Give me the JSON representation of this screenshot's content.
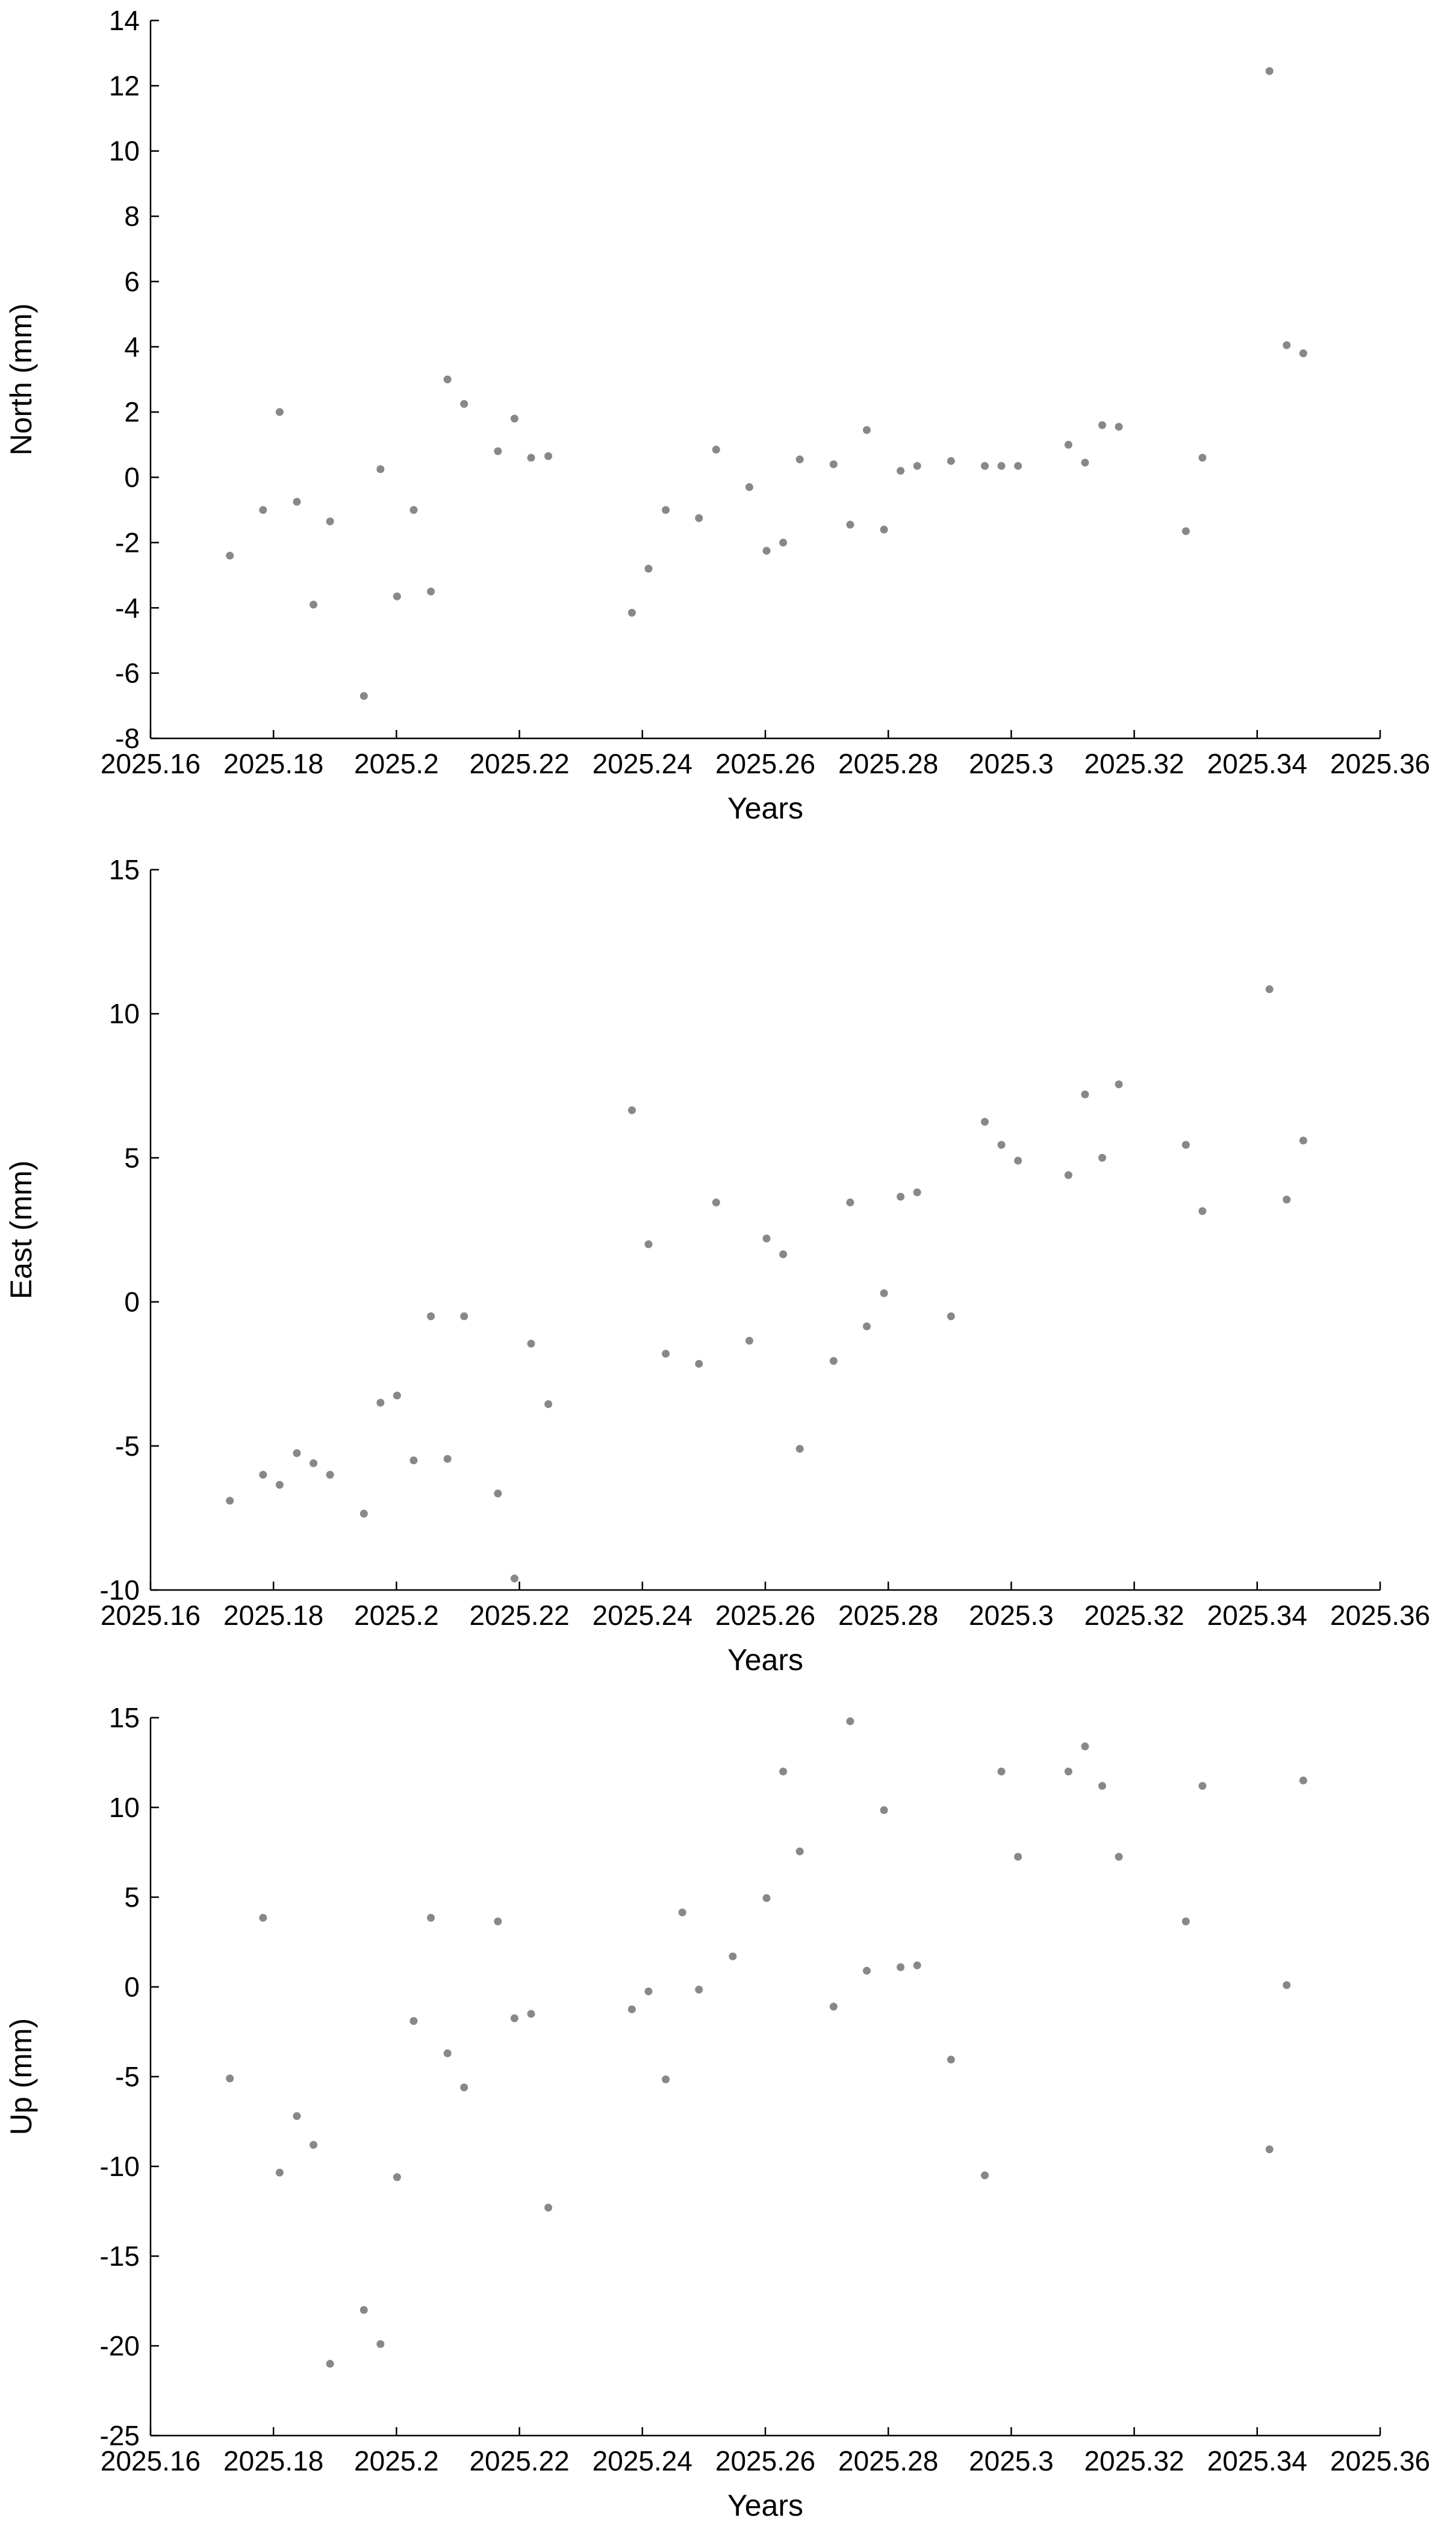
{
  "chart_data": [
    {
      "type": "scatter",
      "xlabel": "Years",
      "ylabel": "North (mm)",
      "xlim": [
        2025.16,
        2025.36
      ],
      "ylim": [
        -8,
        14
      ],
      "xticks": [
        "2025.16",
        "2025.18",
        "2025.2",
        "2025.22",
        "2025.24",
        "2025.26",
        "2025.28",
        "2025.3",
        "2025.32",
        "2025.34",
        "2025.36"
      ],
      "yticks": [
        "-8",
        "-6",
        "-4",
        "-2",
        "0",
        "2",
        "4",
        "6",
        "8",
        "10",
        "12",
        "14"
      ],
      "grid": false,
      "point_color": "#888888",
      "x": [
        2025.1729,
        2025.1783,
        2025.181,
        2025.1838,
        2025.1865,
        2025.1892,
        2025.1947,
        2025.1974,
        2025.2001,
        2025.2028,
        2025.2056,
        2025.2083,
        2025.211,
        2025.2165,
        2025.2192,
        2025.2219,
        2025.2247,
        2025.2383,
        2025.241,
        2025.2438,
        2025.2492,
        2025.252,
        2025.2574,
        2025.2602,
        2025.2629,
        2025.2656,
        2025.2711,
        2025.2738,
        2025.2765,
        2025.2793,
        2025.282,
        2025.2847,
        2025.2902,
        2025.2957,
        2025.2984,
        2025.3011,
        2025.3093,
        2025.312,
        2025.3148,
        2025.3175,
        2025.3284,
        2025.3311,
        2025.342,
        2025.3448,
        2025.3475
      ],
      "y": [
        -2.4,
        -1.0,
        2.0,
        -0.75,
        -3.9,
        -1.35,
        -6.7,
        0.25,
        -3.65,
        -1.0,
        -3.5,
        3.0,
        2.25,
        0.8,
        1.8,
        0.6,
        0.65,
        -4.15,
        -2.8,
        -1.0,
        -1.25,
        0.85,
        -0.3,
        -2.25,
        -2.0,
        0.55,
        0.4,
        -1.45,
        1.45,
        -1.6,
        0.2,
        0.35,
        0.5,
        0.35,
        0.35,
        0.35,
        1.0,
        0.45,
        1.6,
        1.55,
        -1.65,
        0.6,
        12.45,
        4.05,
        3.8
      ]
    },
    {
      "type": "scatter",
      "xlabel": "Years",
      "ylabel": "East (mm)",
      "xlim": [
        2025.16,
        2025.36
      ],
      "ylim": [
        -10,
        15
      ],
      "xticks": [
        "2025.16",
        "2025.18",
        "2025.2",
        "2025.22",
        "2025.24",
        "2025.26",
        "2025.28",
        "2025.3",
        "2025.32",
        "2025.34",
        "2025.36"
      ],
      "yticks": [
        "-10",
        "-5",
        "0",
        "5",
        "10",
        "15"
      ],
      "grid": false,
      "point_color": "#888888",
      "x": [
        2025.1729,
        2025.1783,
        2025.181,
        2025.1838,
        2025.1865,
        2025.1892,
        2025.1947,
        2025.1974,
        2025.2001,
        2025.2028,
        2025.2056,
        2025.2083,
        2025.211,
        2025.2165,
        2025.2192,
        2025.2219,
        2025.2247,
        2025.2383,
        2025.241,
        2025.2438,
        2025.2492,
        2025.252,
        2025.2574,
        2025.2602,
        2025.2629,
        2025.2656,
        2025.2711,
        2025.2738,
        2025.2765,
        2025.2793,
        2025.282,
        2025.2847,
        2025.2902,
        2025.2957,
        2025.2984,
        2025.3011,
        2025.3093,
        2025.312,
        2025.3148,
        2025.3175,
        2025.3284,
        2025.3311,
        2025.342,
        2025.3448,
        2025.3475
      ],
      "y": [
        -6.9,
        -6.0,
        -6.35,
        -5.25,
        -5.6,
        -6.0,
        -7.35,
        -3.5,
        -3.25,
        -5.5,
        -0.5,
        -5.45,
        -0.5,
        -6.65,
        -9.6,
        -1.45,
        -3.55,
        6.65,
        2.0,
        -1.8,
        -2.15,
        3.45,
        -1.35,
        2.2,
        1.65,
        -5.1,
        -2.05,
        3.45,
        -0.85,
        0.3,
        3.65,
        3.8,
        -0.5,
        6.25,
        5.45,
        4.9,
        4.4,
        7.2,
        5.0,
        7.55,
        5.45,
        3.15,
        10.85,
        3.55,
        5.6
      ]
    },
    {
      "type": "scatter",
      "xlabel": "Years",
      "ylabel": "Up (mm)",
      "xlim": [
        2025.16,
        2025.36
      ],
      "ylim": [
        -25,
        15
      ],
      "xticks": [
        "2025.16",
        "2025.18",
        "2025.2",
        "2025.22",
        "2025.24",
        "2025.26",
        "2025.28",
        "2025.3",
        "2025.32",
        "2025.34",
        "2025.36"
      ],
      "yticks": [
        "-25",
        "-20",
        "-15",
        "-10",
        "-5",
        "0",
        "5",
        "10",
        "15"
      ],
      "grid": false,
      "point_color": "#888888",
      "x": [
        2025.1729,
        2025.1783,
        2025.181,
        2025.1838,
        2025.1865,
        2025.1892,
        2025.1947,
        2025.1974,
        2025.2001,
        2025.2028,
        2025.2056,
        2025.2083,
        2025.211,
        2025.2165,
        2025.2192,
        2025.2219,
        2025.2247,
        2025.2383,
        2025.241,
        2025.2438,
        2025.2465,
        2025.2492,
        2025.2547,
        2025.2602,
        2025.2629,
        2025.2656,
        2025.2711,
        2025.2738,
        2025.2765,
        2025.2793,
        2025.282,
        2025.2847,
        2025.2902,
        2025.2957,
        2025.2984,
        2025.3011,
        2025.3093,
        2025.312,
        2025.3148,
        2025.3175,
        2025.3284,
        2025.3311,
        2025.342,
        2025.3448,
        2025.3475
      ],
      "y": [
        -5.1,
        3.85,
        -10.35,
        -7.2,
        -8.8,
        -21.0,
        -18.0,
        -19.9,
        -10.6,
        -1.9,
        3.85,
        -3.7,
        -5.6,
        3.65,
        -1.75,
        -1.5,
        -12.3,
        -1.25,
        -0.25,
        -5.15,
        4.15,
        -0.15,
        1.7,
        4.95,
        12.0,
        7.55,
        -1.1,
        14.8,
        0.9,
        9.85,
        1.1,
        1.2,
        -4.05,
        -10.5,
        12.0,
        7.25,
        12.0,
        13.4,
        11.2,
        7.25,
        3.65,
        11.2,
        -9.05,
        0.1,
        11.5
      ]
    }
  ]
}
